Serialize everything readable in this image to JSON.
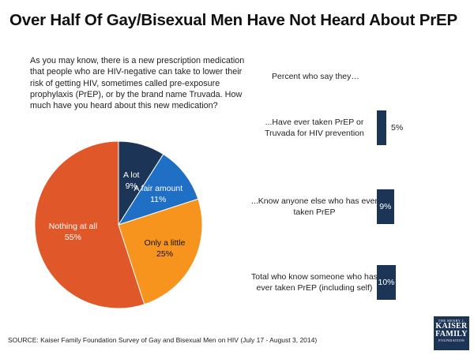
{
  "title": "Over Half Of Gay/Bisexual Men Have Not Heard About PrEP",
  "question": "As you may know, there is a new prescription medication that people who are HIV-negative can take to lower their risk of getting HIV, sometimes called pre-exposure prophylaxis (PrEP), or by the brand name Truvada.  How much have you heard about this new medication?",
  "source": "SOURCE: Kaiser Family Foundation Survey of Gay and Bisexual Men on HIV (July 17 - August 3, 2014)",
  "logo": {
    "line1": "THE HENRY J.",
    "line2": "KAISER",
    "line3": "FAMILY",
    "line4": "FOUNDATION"
  },
  "chart_data": [
    {
      "type": "pie",
      "slices": [
        {
          "label": "A lot",
          "value": 9,
          "display": "9%",
          "color": "#1c3557"
        },
        {
          "label": "A fair amount",
          "value": 11,
          "display": "11%",
          "color": "#1f6fc5"
        },
        {
          "label": "Only a little",
          "value": 25,
          "display": "25%",
          "color": "#f7941d"
        },
        {
          "label": "Nothing at all",
          "value": 55,
          "display": "55%",
          "color": "#e0572a"
        }
      ]
    },
    {
      "type": "bar",
      "orientation": "horizontal",
      "title": "Percent who say they…",
      "categories": [
        "...Have ever taken PrEP or Truvada for HIV prevention",
        "...Know anyone else who has ever taken PrEP",
        "Total who know someone who has ever taken PrEP (including self)"
      ],
      "values": [
        5,
        9,
        10
      ],
      "value_labels": [
        "5%",
        "9%",
        "10%"
      ],
      "color": "#1c3557"
    }
  ]
}
